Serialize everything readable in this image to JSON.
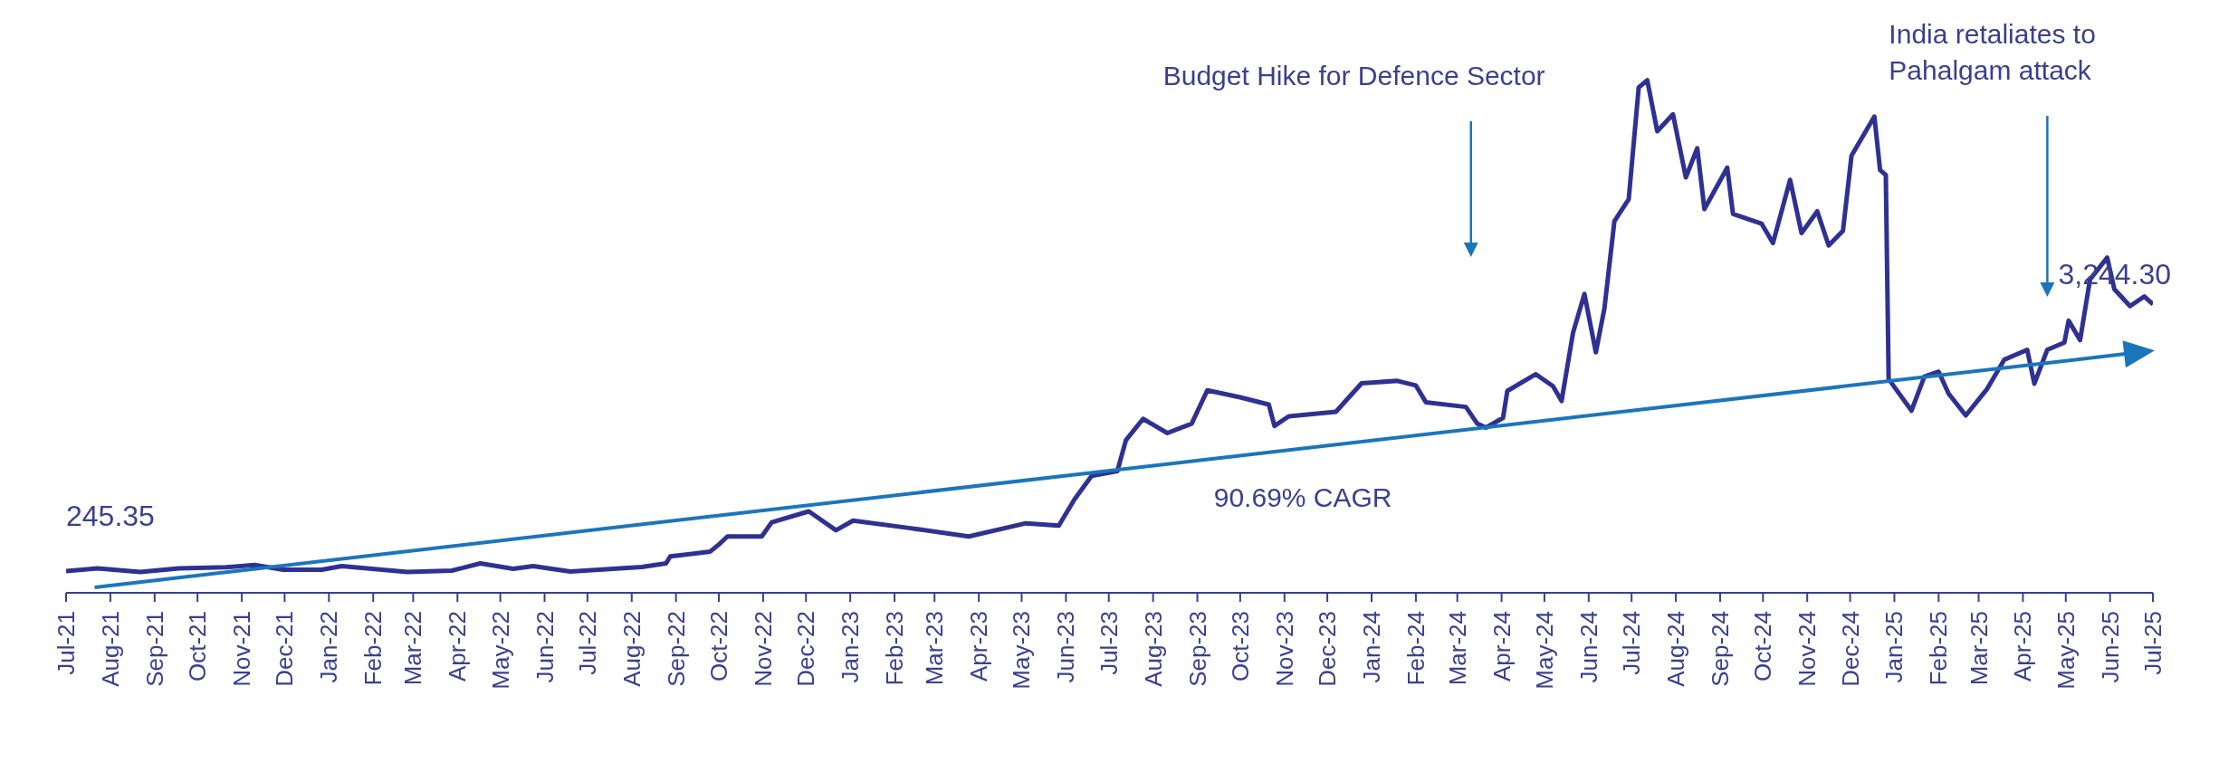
{
  "chart_data": {
    "type": "line",
    "xlim": [
      "2021-07-01",
      "2025-07-01"
    ],
    "tick_labels": "x",
    "xticks": [
      {
        "value": "2021-07-01",
        "label": "Jul-21"
      },
      {
        "value": "2021-08-01",
        "label": "Aug-21"
      },
      {
        "value": "2021-09-01",
        "label": "Sep-21"
      },
      {
        "value": "2021-10-01",
        "label": "Oct-21"
      },
      {
        "value": "2021-11-01",
        "label": "Nov-21"
      },
      {
        "value": "2021-12-01",
        "label": "Dec-21"
      },
      {
        "value": "2022-01-01",
        "label": "Jan-22"
      },
      {
        "value": "2022-02-01",
        "label": "Feb-22"
      },
      {
        "value": "2022-03-01",
        "label": "Mar-22"
      },
      {
        "value": "2022-04-01",
        "label": "Apr-22"
      },
      {
        "value": "2022-05-01",
        "label": "May-22"
      },
      {
        "value": "2022-06-01",
        "label": "Jun-22"
      },
      {
        "value": "2022-07-01",
        "label": "Jul-22"
      },
      {
        "value": "2022-08-01",
        "label": "Aug-22"
      },
      {
        "value": "2022-09-01",
        "label": "Sep-22"
      },
      {
        "value": "2022-10-01",
        "label": "Oct-22"
      },
      {
        "value": "2022-11-01",
        "label": "Nov-22"
      },
      {
        "value": "2022-12-01",
        "label": "Dec-22"
      },
      {
        "value": "2023-01-01",
        "label": "Jan-23"
      },
      {
        "value": "2023-02-01",
        "label": "Feb-23"
      },
      {
        "value": "2023-03-01",
        "label": "Mar-23"
      },
      {
        "value": "2023-04-01",
        "label": "Apr-23"
      },
      {
        "value": "2023-05-01",
        "label": "May-23"
      },
      {
        "value": "2023-06-01",
        "label": "Jun-23"
      },
      {
        "value": "2023-07-01",
        "label": "Jul-23"
      },
      {
        "value": "2023-08-01",
        "label": "Aug-23"
      },
      {
        "value": "2023-09-01",
        "label": "Sep-23"
      },
      {
        "value": "2023-10-01",
        "label": "Oct-23"
      },
      {
        "value": "2023-11-01",
        "label": "Nov-23"
      },
      {
        "value": "2023-12-01",
        "label": "Dec-23"
      },
      {
        "value": "2024-01-01",
        "label": "Jan-24"
      },
      {
        "value": "2024-02-01",
        "label": "Feb-24"
      },
      {
        "value": "2024-03-01",
        "label": "Mar-24"
      },
      {
        "value": "2024-04-01",
        "label": "Apr-24"
      },
      {
        "value": "2024-05-01",
        "label": "May-24"
      },
      {
        "value": "2024-06-01",
        "label": "Jun-24"
      },
      {
        "value": "2024-07-01",
        "label": "Jul-24"
      },
      {
        "value": "2024-08-01",
        "label": "Aug-24"
      },
      {
        "value": "2024-09-01",
        "label": "Sep-24"
      },
      {
        "value": "2024-10-01",
        "label": "Oct-24"
      },
      {
        "value": "2024-11-01",
        "label": "Nov-24"
      },
      {
        "value": "2024-12-01",
        "label": "Dec-24"
      },
      {
        "value": "2025-01-01",
        "label": "Jan-25"
      },
      {
        "value": "2025-02-01",
        "label": "Feb-25"
      },
      {
        "value": "2025-03-01",
        "label": "Mar-25"
      },
      {
        "value": "2025-04-01",
        "label": "Apr-25"
      },
      {
        "value": "2025-05-01",
        "label": "May-25"
      },
      {
        "value": "2025-06-01",
        "label": "Jun-25"
      },
      {
        "value": "2025-07-01",
        "label": "Jul-25"
      }
    ],
    "annotations": [
      "Budget Hike for Defence Sector",
      "India retaliates to Pahalgam attack",
      "90.69% CAGR"
    ],
    "series": [
      {
        "color": "#2e3192",
        "x": [
          "2021-07-01",
          "2021-07-23",
          "2021-08-22",
          "2021-09-18",
          "2021-10-21",
          "2021-11-10",
          "2021-11-30",
          "2021-12-27",
          "2022-01-10",
          "2022-02-25",
          "2022-03-28",
          "2022-04-17",
          "2022-05-10",
          "2022-05-24",
          "2022-06-19",
          "2022-08-08",
          "2022-08-25",
          "2022-08-28",
          "2022-09-25",
          "2022-10-01",
          "2022-10-07",
          "2022-10-31",
          "2022-11-07",
          "2022-12-03",
          "2022-12-22",
          "2023-01-03",
          "2023-02-11",
          "2023-03-25",
          "2023-05-04",
          "2023-05-27",
          "2023-06-07",
          "2023-06-19",
          "2023-07-07",
          "2023-07-13",
          "2023-07-25",
          "2023-08-11",
          "2023-08-28",
          "2023-09-08",
          "2023-10-01",
          "2023-10-21",
          "2023-10-25",
          "2023-11-04",
          "2023-12-07",
          "2023-12-25",
          "2024-01-19",
          "2024-02-01",
          "2024-02-08",
          "2024-03-07",
          "2024-03-15",
          "2024-03-21",
          "2024-04-02",
          "2024-04-05",
          "2024-04-25",
          "2024-05-07",
          "2024-05-13",
          "2024-05-21",
          "2024-05-29",
          "2024-06-06",
          "2024-06-12",
          "2024-06-19",
          "2024-06-29",
          "2024-07-06",
          "2024-07-12",
          "2024-07-19",
          "2024-07-30",
          "2024-08-08",
          "2024-08-16",
          "2024-08-21",
          "2024-09-06",
          "2024-09-10",
          "2024-09-30",
          "2024-10-08",
          "2024-10-20",
          "2024-10-28",
          "2024-11-08",
          "2024-11-16",
          "2024-11-26",
          "2024-12-02",
          "2024-12-18",
          "2024-12-22",
          "2024-12-26",
          "2024-12-28",
          "2025-01-13",
          "2025-01-22",
          "2025-02-01",
          "2025-02-08",
          "2025-02-20",
          "2025-03-07",
          "2025-03-19",
          "2025-04-04",
          "2025-04-09",
          "2025-04-18",
          "2025-04-30",
          "2025-05-03",
          "2025-05-11",
          "2025-05-18",
          "2025-05-30",
          "2025-06-04",
          "2025-06-15",
          "2025-06-25",
          "2025-07-01"
        ],
        "values": [
          245.35,
          275,
          233,
          275,
          287,
          313,
          260,
          260,
          301,
          233,
          249,
          331,
          270,
          301,
          239,
          291,
          331,
          409,
          464,
          543,
          633,
          633,
          793,
          916,
          703,
          811,
          729,
          633,
          782,
          756,
          1050,
          1316,
          1369,
          1716,
          1956,
          1796,
          1902,
          2277,
          2198,
          2117,
          1876,
          1984,
          2035,
          2356,
          2383,
          2331,
          2143,
          2090,
          1902,
          1857,
          1966,
          2269,
          2458,
          2322,
          2157,
          2922,
          3361,
          2704,
          3198,
          4179,
          4425,
          5681,
          5763,
          5190,
          5380,
          4670,
          4999,
          4315,
          4780,
          4261,
          4151,
          3932,
          4643,
          4044,
          4289,
          3905,
          4070,
          4916,
          5354,
          4753,
          4697,
          2403,
          2048,
          2431,
          2486,
          2239,
          1994,
          2294,
          2622,
          2732,
          2351,
          2732,
          2813,
          3059,
          2841,
          3524,
          3769,
          3414,
          3223,
          3332,
          3244.3
        ],
        "value_labels": [
          "245.35",
          null,
          null,
          null,
          null,
          null,
          null,
          null,
          null,
          null,
          null,
          null,
          null,
          null,
          null,
          null,
          null,
          null,
          null,
          null,
          null,
          null,
          null,
          null,
          null,
          null,
          null,
          null,
          null,
          null,
          null,
          null,
          null,
          null,
          null,
          null,
          null,
          null,
          null,
          null,
          null,
          null,
          null,
          null,
          null,
          null,
          null,
          null,
          null,
          null,
          null,
          null,
          null,
          null,
          null,
          null,
          null,
          null,
          null,
          null,
          null,
          null,
          null,
          null,
          null,
          null,
          null,
          null,
          null,
          null,
          null,
          null,
          null,
          null,
          null,
          null,
          null,
          null,
          null,
          null,
          null,
          null,
          null,
          null,
          null,
          null,
          null,
          null,
          null,
          null,
          null,
          null,
          null,
          null,
          null,
          null,
          null,
          null,
          null,
          null,
          "3,244.30"
        ]
      },
      {
        "type": "line",
        "color": "#1b75bb",
        "x": [
          "2021-07-21",
          "2025-06-13"
        ],
        "values": [
          62,
          2688
        ]
      }
    ]
  }
}
